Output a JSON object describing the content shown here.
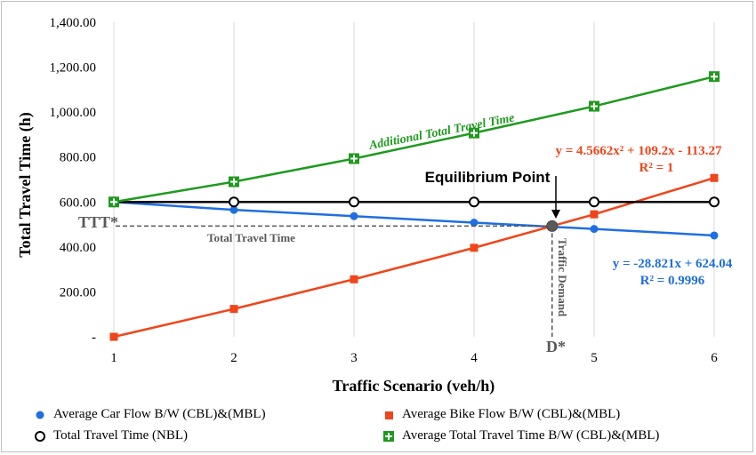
{
  "chart_data": {
    "type": "line",
    "x": [
      1,
      2,
      3,
      4,
      5,
      6
    ],
    "xlabel": "Traffic Scenario (veh/h)",
    "ylabel": "Total Travel Time (h)",
    "xlim": [
      1,
      6
    ],
    "ylim": [
      0,
      1400
    ],
    "yticks": [
      "-",
      "200.00",
      "400.00",
      "600.00",
      "800.00",
      "1,000.00",
      "1,200.00",
      "1,400.00"
    ],
    "xticks": [
      "1",
      "2",
      "3",
      "4",
      "5",
      "6"
    ],
    "grid": "vertical",
    "legend_position": "bottom",
    "series": [
      {
        "name": "Average Car Flow B/W (CBL)&(MBL)",
        "color": "#1f6fe0",
        "marker": "circle",
        "values": [
          600,
          565,
          537,
          508,
          480,
          451
        ]
      },
      {
        "name": "Average Bike Flow B/W (CBL)&(MBL)",
        "color": "#f0451a",
        "marker": "square",
        "values": [
          0,
          124,
          256,
          396,
          545,
          707
        ]
      },
      {
        "name": "Total Travel Time (NBL)",
        "color": "#000000",
        "marker": "hollow-circle",
        "values": [
          600,
          600,
          600,
          600,
          600,
          600
        ]
      },
      {
        "name": "Average Total Travel Time B/W (CBL)&(MBL)",
        "color": "#1f9a1f",
        "marker": "plus-square",
        "values": [
          600,
          690,
          793,
          907,
          1026,
          1158
        ]
      }
    ],
    "equilibrium": {
      "x": 4.65,
      "y": 493,
      "label": "Equilibrium Point"
    },
    "annotations": {
      "additional": "Additional Total Travel Time",
      "bike_eq": "y = 4.5662x² + 109.2x - 113.27",
      "bike_r2": "R² = 1",
      "car_eq": "y = -28.821x + 624.04",
      "car_r2": "R² = 0.9996",
      "ttt_star": "TTT*",
      "total_travel_time": "Total Travel Time",
      "traffic_demand": "Traffic Demand",
      "d_star": "D*"
    }
  }
}
